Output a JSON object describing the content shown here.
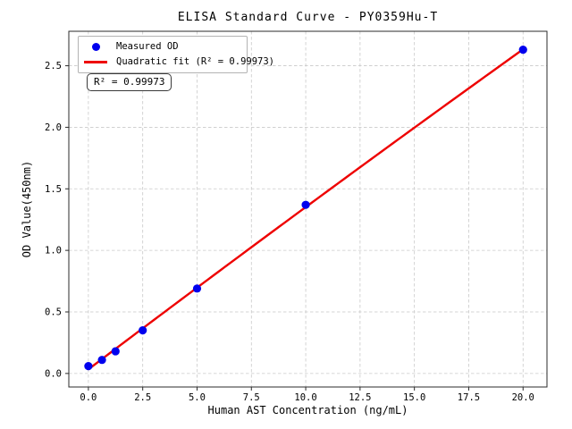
{
  "chart_data": {
    "type": "scatter",
    "title": "ELISA Standard Curve - PY0359Hu-T",
    "xlabel": "Human AST Concentration (ng/mL)",
    "ylabel": "OD Value(450nm)",
    "xlim": [
      -0.9,
      21.1
    ],
    "ylim": [
      -0.11,
      2.78
    ],
    "x_ticks": [
      0,
      2.5,
      5,
      7.5,
      10,
      12.5,
      15,
      17.5,
      20
    ],
    "x_tick_labels": [
      "0.0",
      "2.5",
      "5.0",
      "7.5",
      "10.0",
      "12.5",
      "15.0",
      "17.5",
      "20.0"
    ],
    "y_ticks": [
      0,
      0.5,
      1.0,
      1.5,
      2.0,
      2.5
    ],
    "y_tick_labels": [
      "0.0",
      "0.5",
      "1.0",
      "1.5",
      "2.0",
      "2.5"
    ],
    "grid": true,
    "legend_position": "upper-left",
    "series": [
      {
        "name": "Measured OD",
        "kind": "scatter",
        "color": "#0000ee",
        "x": [
          0,
          0.625,
          1.25,
          2.5,
          5,
          10,
          20
        ],
        "y": [
          0.06,
          0.11,
          0.18,
          0.35,
          0.69,
          1.37,
          2.63
        ]
      },
      {
        "name": "Quadratic fit (R² = 0.99973)",
        "kind": "line",
        "color": "#ee0000",
        "fit": {
          "form": "quadratic",
          "a": 0.0335,
          "b": 0.1336,
          "c": -0.00018,
          "x_range": [
            0,
            20
          ]
        },
        "r_squared": 0.99973
      }
    ],
    "annotation": "R² = 0.99973",
    "colors": {
      "points": "#0000ee",
      "fit_line": "#ee0000",
      "grid": "#c9c9c9",
      "spine": "#2b2b2b",
      "text": "#000000"
    }
  }
}
